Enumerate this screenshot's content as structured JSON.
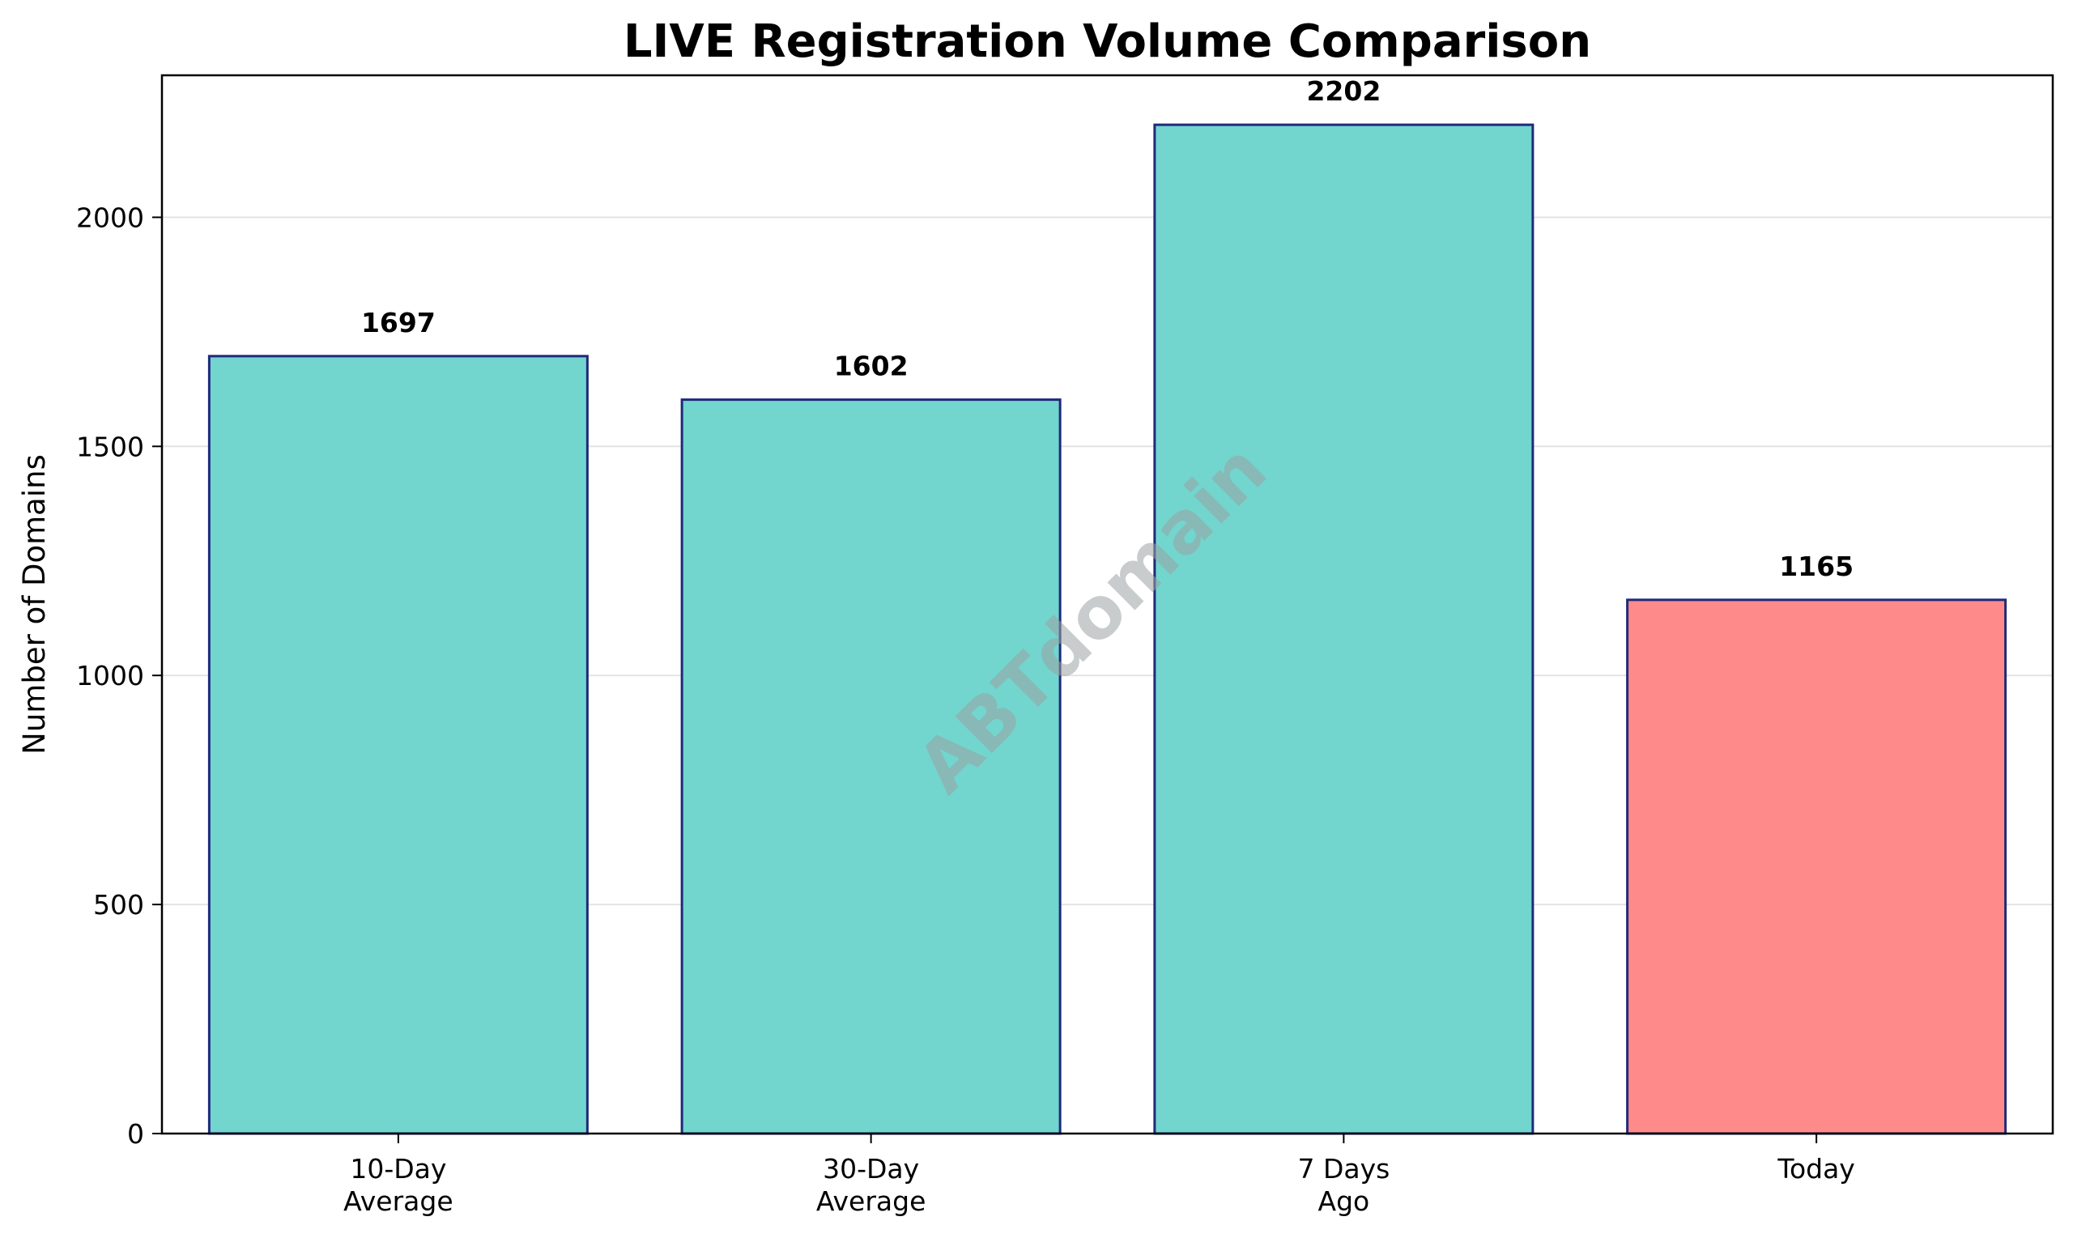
{
  "chart_data": {
    "type": "bar",
    "title": "LIVE Registration Volume Comparison",
    "xlabel": "",
    "ylabel": "Number of Domains",
    "categories": [
      [
        "10-Day",
        "Average"
      ],
      [
        "30-Day",
        "Average"
      ],
      [
        "7 Days",
        "Ago"
      ],
      [
        "Today"
      ]
    ],
    "values": [
      1697,
      1602,
      2202,
      1165
    ],
    "value_labels": [
      "1697",
      "1602",
      "2202",
      "1165"
    ],
    "bar_colors": [
      "#72d5ce",
      "#72d5ce",
      "#72d5ce",
      "#ff8a8a"
    ],
    "bar_edge_color": "#1f2a7a",
    "ylim": [
      0,
      2310
    ],
    "yticks": [
      0,
      500,
      1000,
      1500,
      2000
    ],
    "grid": "y",
    "grid_color": "#e3e3e3",
    "watermark": "ABTdomain"
  }
}
